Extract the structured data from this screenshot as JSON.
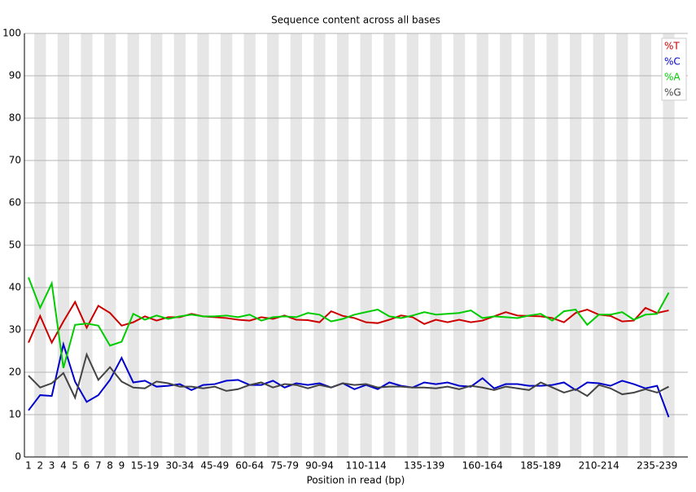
{
  "chart_data": {
    "type": "line",
    "title": "Sequence content across all bases",
    "x_label": "Position in read (bp)",
    "categories": [
      "1",
      "2",
      "3",
      "4",
      "5",
      "6",
      "7",
      "8",
      "9",
      null,
      "15-19",
      null,
      null,
      "30-34",
      null,
      null,
      "45-49",
      null,
      null,
      "60-64",
      null,
      null,
      "75-79",
      null,
      null,
      "90-94",
      null,
      null,
      null,
      "110-114",
      null,
      null,
      null,
      null,
      "135-139",
      null,
      null,
      null,
      null,
      "160-164",
      null,
      null,
      null,
      null,
      "185-189",
      null,
      null,
      null,
      null,
      "210-214",
      null,
      null,
      null,
      null,
      "235-239",
      null
    ],
    "series": [
      {
        "name": "%T",
        "color": "#cc0000",
        "values": [
          27,
          33.3,
          27,
          32,
          36.6,
          30.5,
          35.7,
          34,
          31,
          31.8,
          33.2,
          32.2,
          33,
          33,
          33.8,
          33.2,
          33,
          32.8,
          32.4,
          32.2,
          33,
          32.6,
          33.4,
          32.4,
          32.3,
          31.8,
          34.4,
          33.3,
          32.8,
          31.8,
          31.6,
          32.4,
          33.4,
          33,
          31.4,
          32.4,
          31.8,
          32.4,
          31.8,
          32.2,
          33.2,
          34.2,
          33.4,
          33.3,
          33.2,
          32.8,
          31.8,
          34,
          34.8,
          33.6,
          33.3,
          32,
          32.2,
          35.2,
          34,
          34.6
        ]
      },
      {
        "name": "%C",
        "color": "#0000cc",
        "values": [
          11,
          14.6,
          14.4,
          26.6,
          17.8,
          13,
          14.6,
          18.2,
          23.4,
          17.6,
          18,
          16.6,
          16.8,
          17.2,
          15.8,
          17,
          17.2,
          18,
          18.2,
          17,
          17,
          18,
          16.4,
          17.4,
          17,
          17.4,
          16.4,
          17.4,
          16,
          17,
          16,
          17.6,
          16.8,
          16.4,
          17.6,
          17.2,
          17.6,
          16.8,
          16.6,
          18.6,
          16.2,
          17.2,
          17.2,
          16.8,
          16.8,
          17,
          17.6,
          15.8,
          17.6,
          17.4,
          16.8,
          18,
          17.2,
          16.2,
          16.8,
          9.4
        ]
      },
      {
        "name": "%A",
        "color": "#00cc00",
        "values": [
          42.4,
          35.2,
          41,
          21,
          31.2,
          31.5,
          31,
          26.3,
          27.2,
          33.8,
          32.4,
          33.4,
          32.6,
          33.2,
          33.6,
          33.2,
          33.2,
          33.4,
          33,
          33.6,
          32.2,
          33,
          33.2,
          33,
          34,
          33.6,
          32,
          32.6,
          33.6,
          34.2,
          34.8,
          33.2,
          32.8,
          33.4,
          34.2,
          33.6,
          33.8,
          34,
          34.6,
          32.8,
          33.2,
          33,
          32.8,
          33.4,
          33.8,
          32.2,
          34.4,
          34.8,
          31.2,
          33.6,
          33.6,
          34.2,
          32.4,
          33.6,
          33.8,
          38.8
        ]
      },
      {
        "name": "%G",
        "color": "#444444",
        "values": [
          19.2,
          16.4,
          17.4,
          19.8,
          14,
          24.2,
          18.2,
          21.2,
          17.8,
          16.4,
          16.2,
          17.8,
          17.4,
          16.6,
          16.6,
          16.2,
          16.6,
          15.6,
          16,
          17,
          17.6,
          16.4,
          17.2,
          17,
          16.2,
          17,
          16.4,
          17.4,
          17,
          17.2,
          16.4,
          16.6,
          16.6,
          16.4,
          16.4,
          16.2,
          16.6,
          16,
          16.8,
          16.4,
          15.8,
          16.6,
          16.2,
          15.8,
          17.6,
          16.4,
          15.2,
          16,
          14.4,
          17,
          16.2,
          14.8,
          15.2,
          16,
          15.2,
          16.6
        ]
      }
    ],
    "ylim": [
      0,
      100
    ],
    "yticks": [
      0,
      10,
      20,
      30,
      40,
      50,
      60,
      70,
      80,
      90,
      100
    ],
    "grid": true,
    "legend": "top-right"
  }
}
